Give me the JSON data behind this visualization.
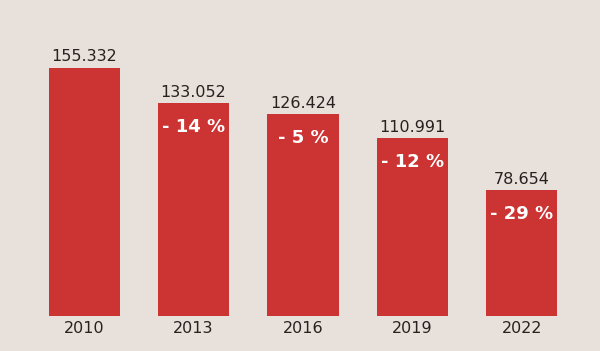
{
  "categories": [
    "2010",
    "2013",
    "2016",
    "2019",
    "2022"
  ],
  "values": [
    155332,
    133052,
    126424,
    110991,
    78654
  ],
  "labels_above": [
    "155.332",
    "133.052",
    "126.424",
    "110.991",
    "78.654"
  ],
  "pct_labels": [
    "",
    "- 14 %",
    "- 5 %",
    "- 12 %",
    "- 29 %"
  ],
  "bar_color": "#cc3333",
  "background_color": "#e8e0db",
  "label_color_above": "#2a2020",
  "label_color_inside": "#ffffff",
  "ylim": [
    0,
    180000
  ],
  "bar_width": 0.65,
  "label_fontsize": 11.5,
  "pct_fontsize": 13,
  "tick_fontsize": 11.5
}
